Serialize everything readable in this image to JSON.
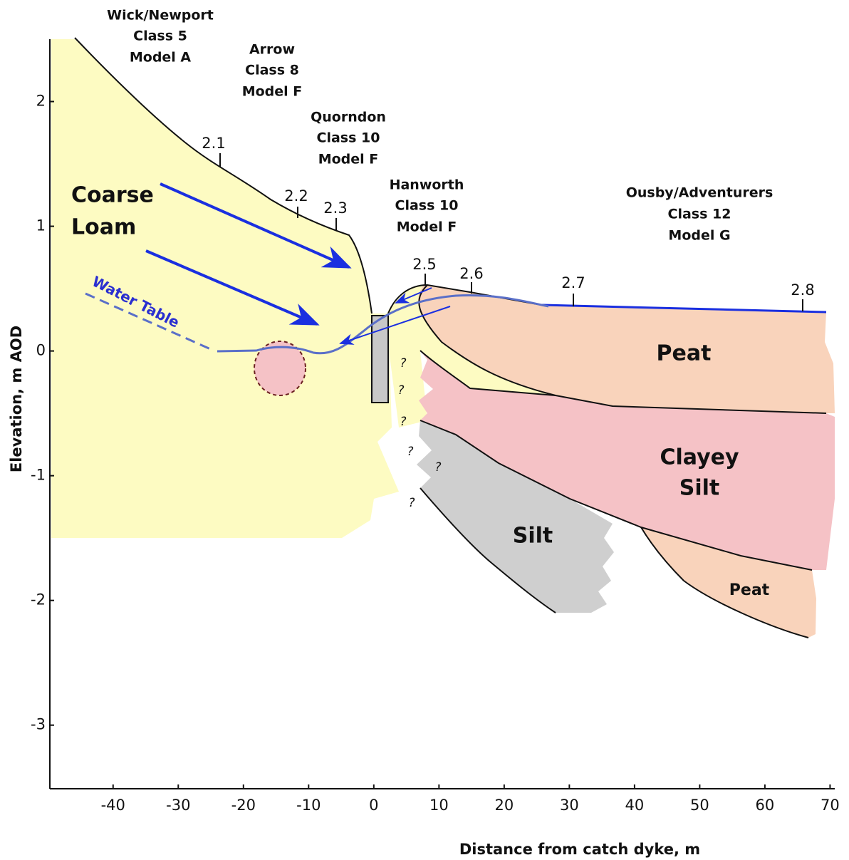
{
  "axes": {
    "xlabel": "Distance from catch dyke, m",
    "ylabel": "Elevation, m AOD",
    "xlim": [
      -49.7,
      70.5
    ],
    "ylim": [
      -3.51,
      2.5
    ],
    "xticks": [
      -40,
      -30,
      -20,
      -10,
      0,
      10,
      20,
      30,
      40,
      50,
      60,
      70
    ],
    "yticks": [
      -3,
      -2,
      -1,
      0,
      1,
      2
    ]
  },
  "soil_series": [
    {
      "name": "Wick/Newport",
      "class": "Class 5",
      "model": "Model A"
    },
    {
      "name": "Arrow",
      "class": "Class 8",
      "model": "Model F"
    },
    {
      "name": "Quorndon",
      "class": "Class 10",
      "model": "Model F"
    },
    {
      "name": "Hanworth",
      "class": "Class 10",
      "model": "Model F"
    },
    {
      "name": "Ousby/Adventurers",
      "class": "Class 12",
      "model": "Model G"
    }
  ],
  "profile_labels": [
    "2.1",
    "2.2",
    "2.3",
    "2.5",
    "2.6",
    "2.7",
    "2.8"
  ],
  "layers": {
    "coarse_loam": [
      "Coarse",
      "Loam"
    ],
    "water_table": "Water Table",
    "peat_upper": "Peat",
    "clayey_silt": [
      "Clayey",
      "Silt"
    ],
    "silt": "Silt",
    "peat_lower": "Peat",
    "question_marks": [
      "?",
      "?",
      "?",
      "?",
      "?",
      "?"
    ]
  }
}
